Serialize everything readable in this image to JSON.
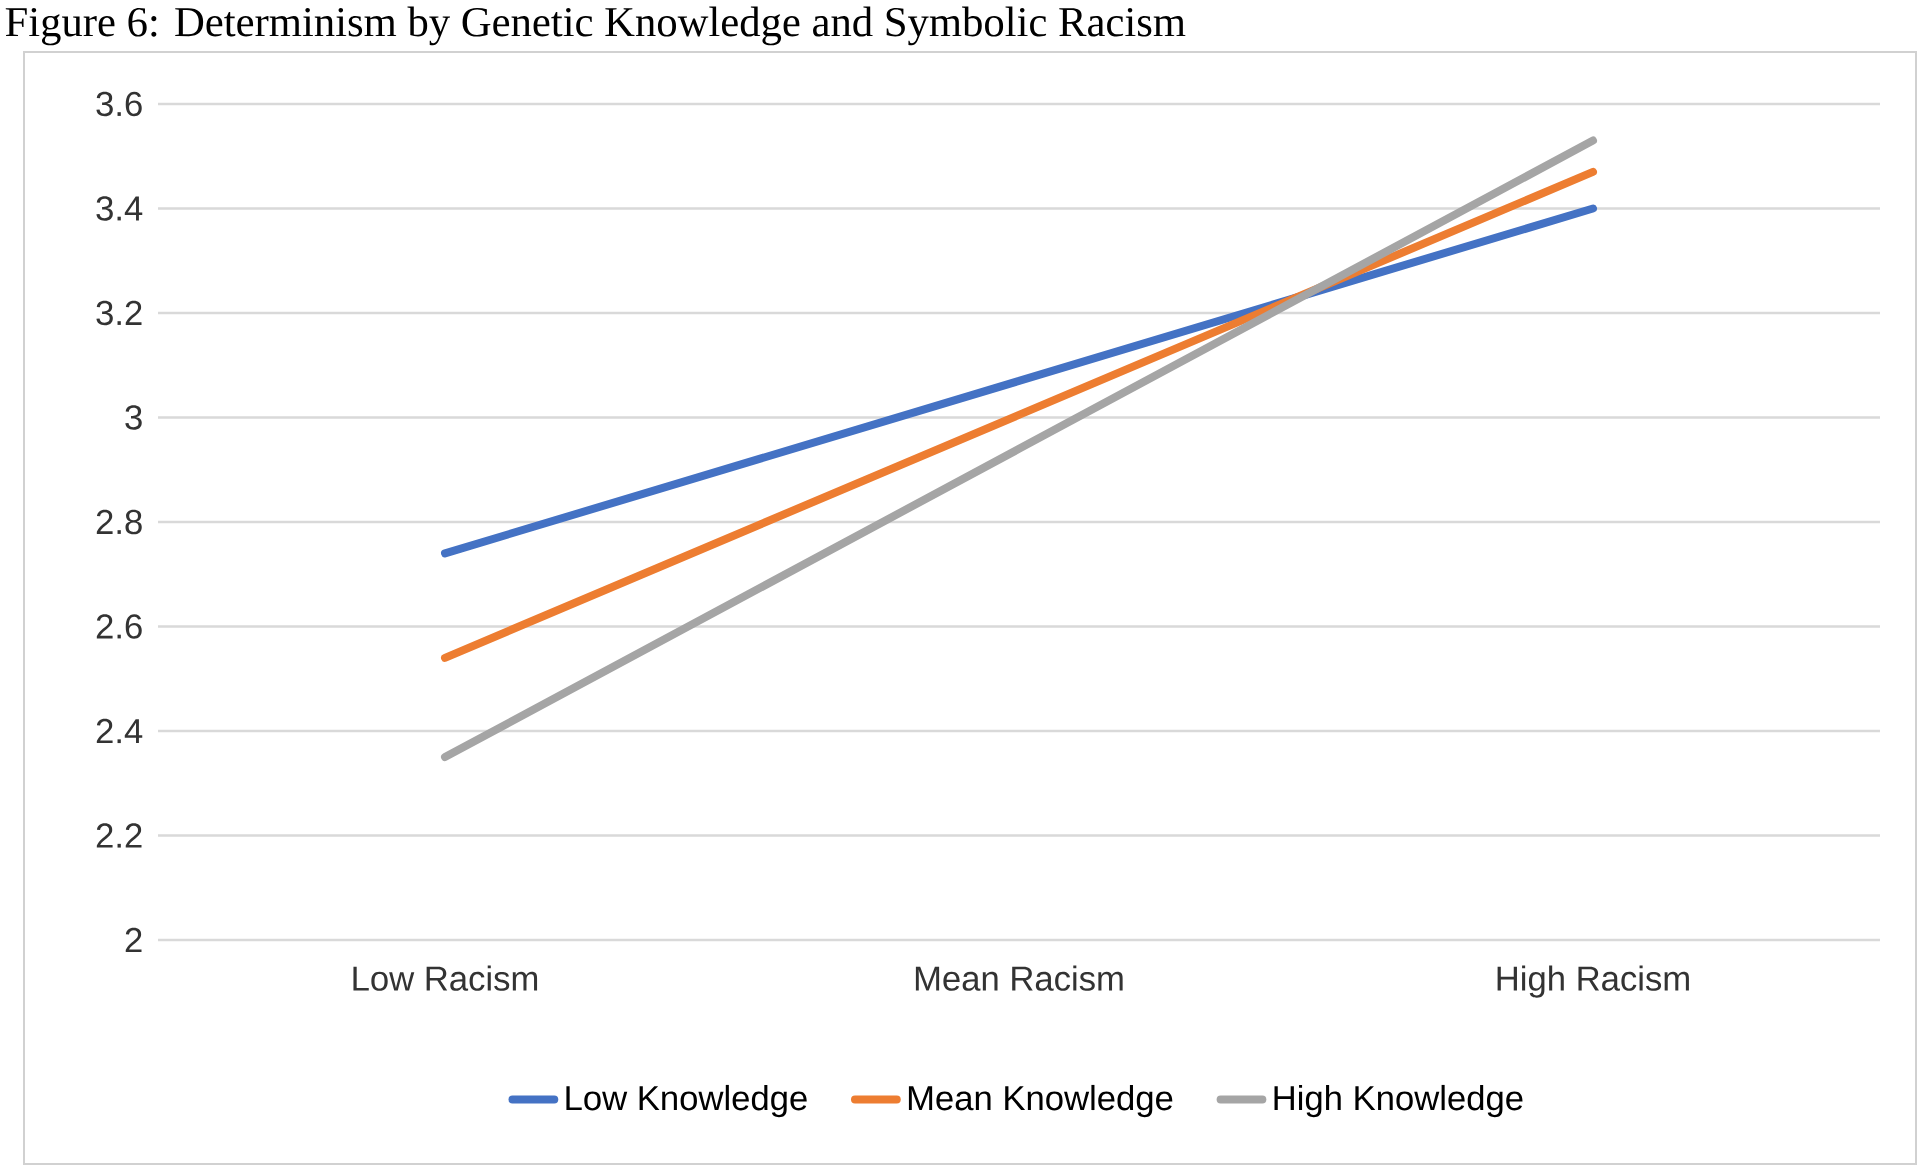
{
  "chart_data": {
    "type": "line",
    "title": "Figure 6: Determinism by Genetic Knowledge and Symbolic Racism",
    "categories": [
      "Low Racism",
      "Mean Racism",
      "High Racism"
    ],
    "series": [
      {
        "name": "Low Knowledge",
        "color": "#4472c4",
        "values": [
          2.74,
          3.07,
          3.4
        ]
      },
      {
        "name": "Mean Knowledge",
        "color": "#ed7d31",
        "values": [
          2.54,
          3.005,
          3.47
        ]
      },
      {
        "name": "High Knowledge",
        "color": "#a5a5a5",
        "values": [
          2.35,
          2.94,
          3.53
        ]
      }
    ],
    "ylim": [
      2,
      3.6
    ],
    "yticks": [
      2,
      2.2,
      2.4,
      2.6,
      2.8,
      3,
      3.2,
      3.4,
      3.6
    ],
    "grid": "y",
    "legend": "bottom",
    "marker": "none",
    "line_style": "solid"
  }
}
